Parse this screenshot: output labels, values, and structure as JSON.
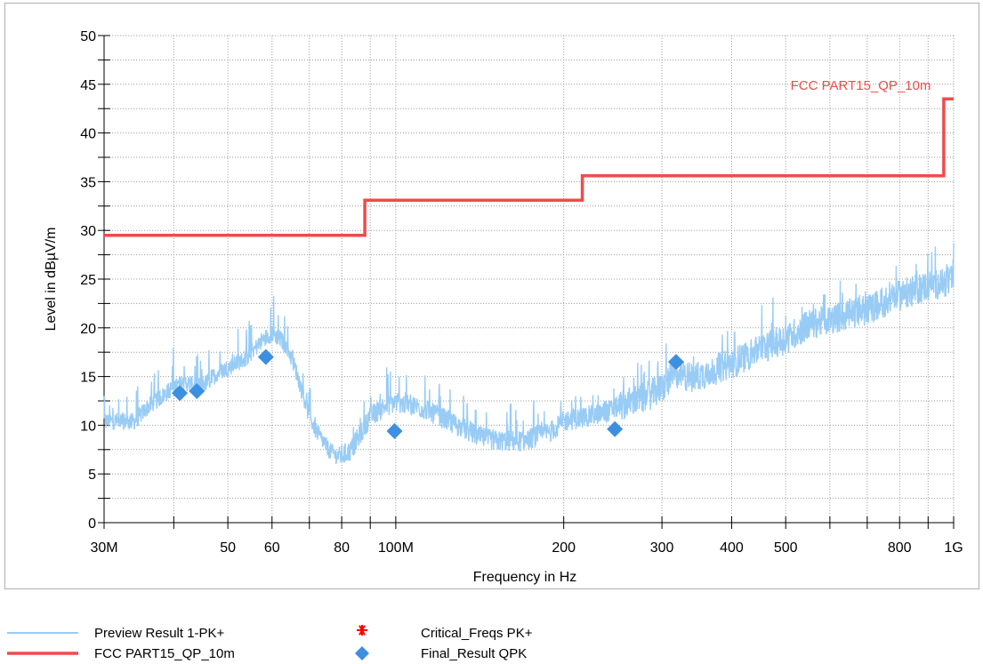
{
  "chart_data": {
    "type": "line",
    "xlabel": "Frequency in Hz",
    "ylabel": "Level in dBµV/m",
    "x_scale": "log",
    "xlim": [
      30000000,
      1000000000
    ],
    "ylim": [
      0,
      50
    ],
    "grid": true,
    "legend_placement": "bottom",
    "y_ticks": [
      0,
      5,
      10,
      15,
      20,
      25,
      30,
      35,
      40,
      45,
      50
    ],
    "x_ticks": [
      {
        "value": 30000000,
        "label": "30M"
      },
      {
        "value": 50000000,
        "label": "50"
      },
      {
        "value": 60000000,
        "label": "60"
      },
      {
        "value": 80000000,
        "label": "80"
      },
      {
        "value": 100000000,
        "label": "100M"
      },
      {
        "value": 200000000,
        "label": "200"
      },
      {
        "value": 300000000,
        "label": "300"
      },
      {
        "value": 400000000,
        "label": "400"
      },
      {
        "value": 500000000,
        "label": "500"
      },
      {
        "value": 800000000,
        "label": "800"
      },
      {
        "value": 1000000000,
        "label": "1G"
      }
    ],
    "minor_x_ticks": [
      40000000,
      70000000,
      90000000,
      600000000,
      700000000,
      900000000
    ],
    "series": [
      {
        "name": "Preview Result 1-PK+",
        "kind": "noisy-trace",
        "color": "#99ccf5",
        "x": [
          30000000,
          32000000,
          34000000,
          36000000,
          38000000,
          40000000,
          42000000,
          44000000,
          46000000,
          48000000,
          50000000,
          52000000,
          54000000,
          56000000,
          58000000,
          60000000,
          62000000,
          64000000,
          66000000,
          68000000,
          70000000,
          72000000,
          74000000,
          76000000,
          78000000,
          80000000,
          83000000,
          86000000,
          90000000,
          95000000,
          100000000,
          110000000,
          120000000,
          130000000,
          140000000,
          150000000,
          160000000,
          170000000,
          180000000,
          190000000,
          200000000,
          220000000,
          240000000,
          260000000,
          280000000,
          300000000,
          320000000,
          340000000,
          360000000,
          400000000,
          450000000,
          500000000,
          550000000,
          600000000,
          700000000,
          800000000,
          900000000,
          1000000000
        ],
        "y": [
          10.5,
          10.5,
          10.5,
          12,
          13,
          14,
          14.5,
          14,
          14.5,
          15.5,
          16,
          16.5,
          17,
          18,
          19,
          19.5,
          19,
          18,
          16,
          13.5,
          11,
          9.5,
          8.5,
          7.5,
          7,
          7,
          7.5,
          9,
          11,
          12,
          12.5,
          12,
          11,
          10,
          9,
          8.5,
          8.5,
          8.5,
          9,
          9.5,
          10.5,
          11,
          11.5,
          12.5,
          13,
          14,
          15.5,
          15,
          15.5,
          16.5,
          18,
          19,
          20.5,
          21,
          22,
          23.5,
          24.5,
          25
        ]
      },
      {
        "name": "FCC PART15_QP_10m",
        "kind": "limit-step",
        "color": "#ef4b4b",
        "x": [
          30000000,
          88000000,
          88000000,
          216000000,
          216000000,
          960000000,
          960000000,
          1000000000
        ],
        "y": [
          29.5,
          29.5,
          33.1,
          33.1,
          35.6,
          35.6,
          43.5,
          43.5
        ]
      },
      {
        "name": "Critical_Freqs PK+",
        "kind": "asterisk-markers",
        "color": "#ff0000",
        "x": [],
        "y": []
      },
      {
        "name": "Final_Result QPK",
        "kind": "diamond-markers",
        "color": "#3d8fe0",
        "x": [
          41000000,
          44000000,
          58500000,
          99500000,
          247000000,
          318000000
        ],
        "y": [
          13.3,
          13.5,
          17.0,
          9.4,
          9.6,
          16.5
        ]
      }
    ],
    "annotations": [
      {
        "text": "FCC PART15_QP_10m",
        "x": 510000000,
        "y": 45,
        "color": "#ef4b4b"
      }
    ]
  }
}
